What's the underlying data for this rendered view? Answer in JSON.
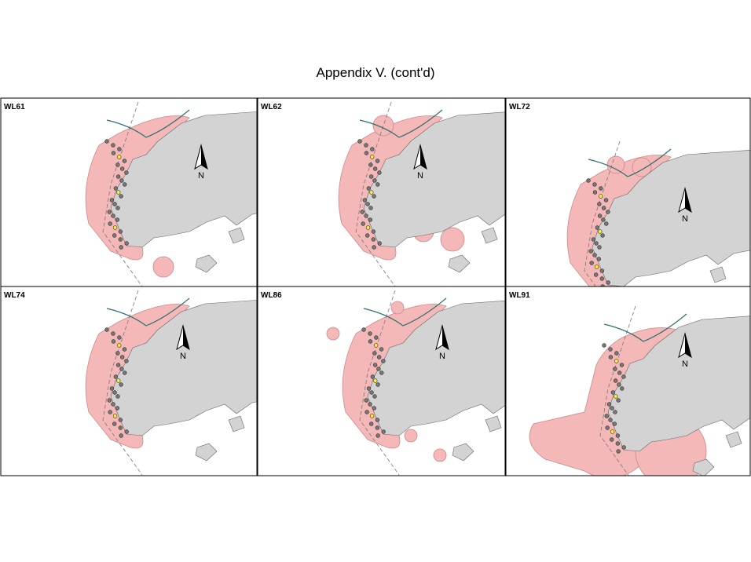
{
  "title": "Appendix V.  (cont'd)",
  "panels": [
    {
      "label": "WL61",
      "north": "N"
    },
    {
      "label": "WL62",
      "north": "N"
    },
    {
      "label": "WL72",
      "north": "N"
    },
    {
      "label": "WL74",
      "north": "N"
    },
    {
      "label": "WL86",
      "north": "N"
    },
    {
      "label": "WL91",
      "north": "N"
    }
  ]
}
